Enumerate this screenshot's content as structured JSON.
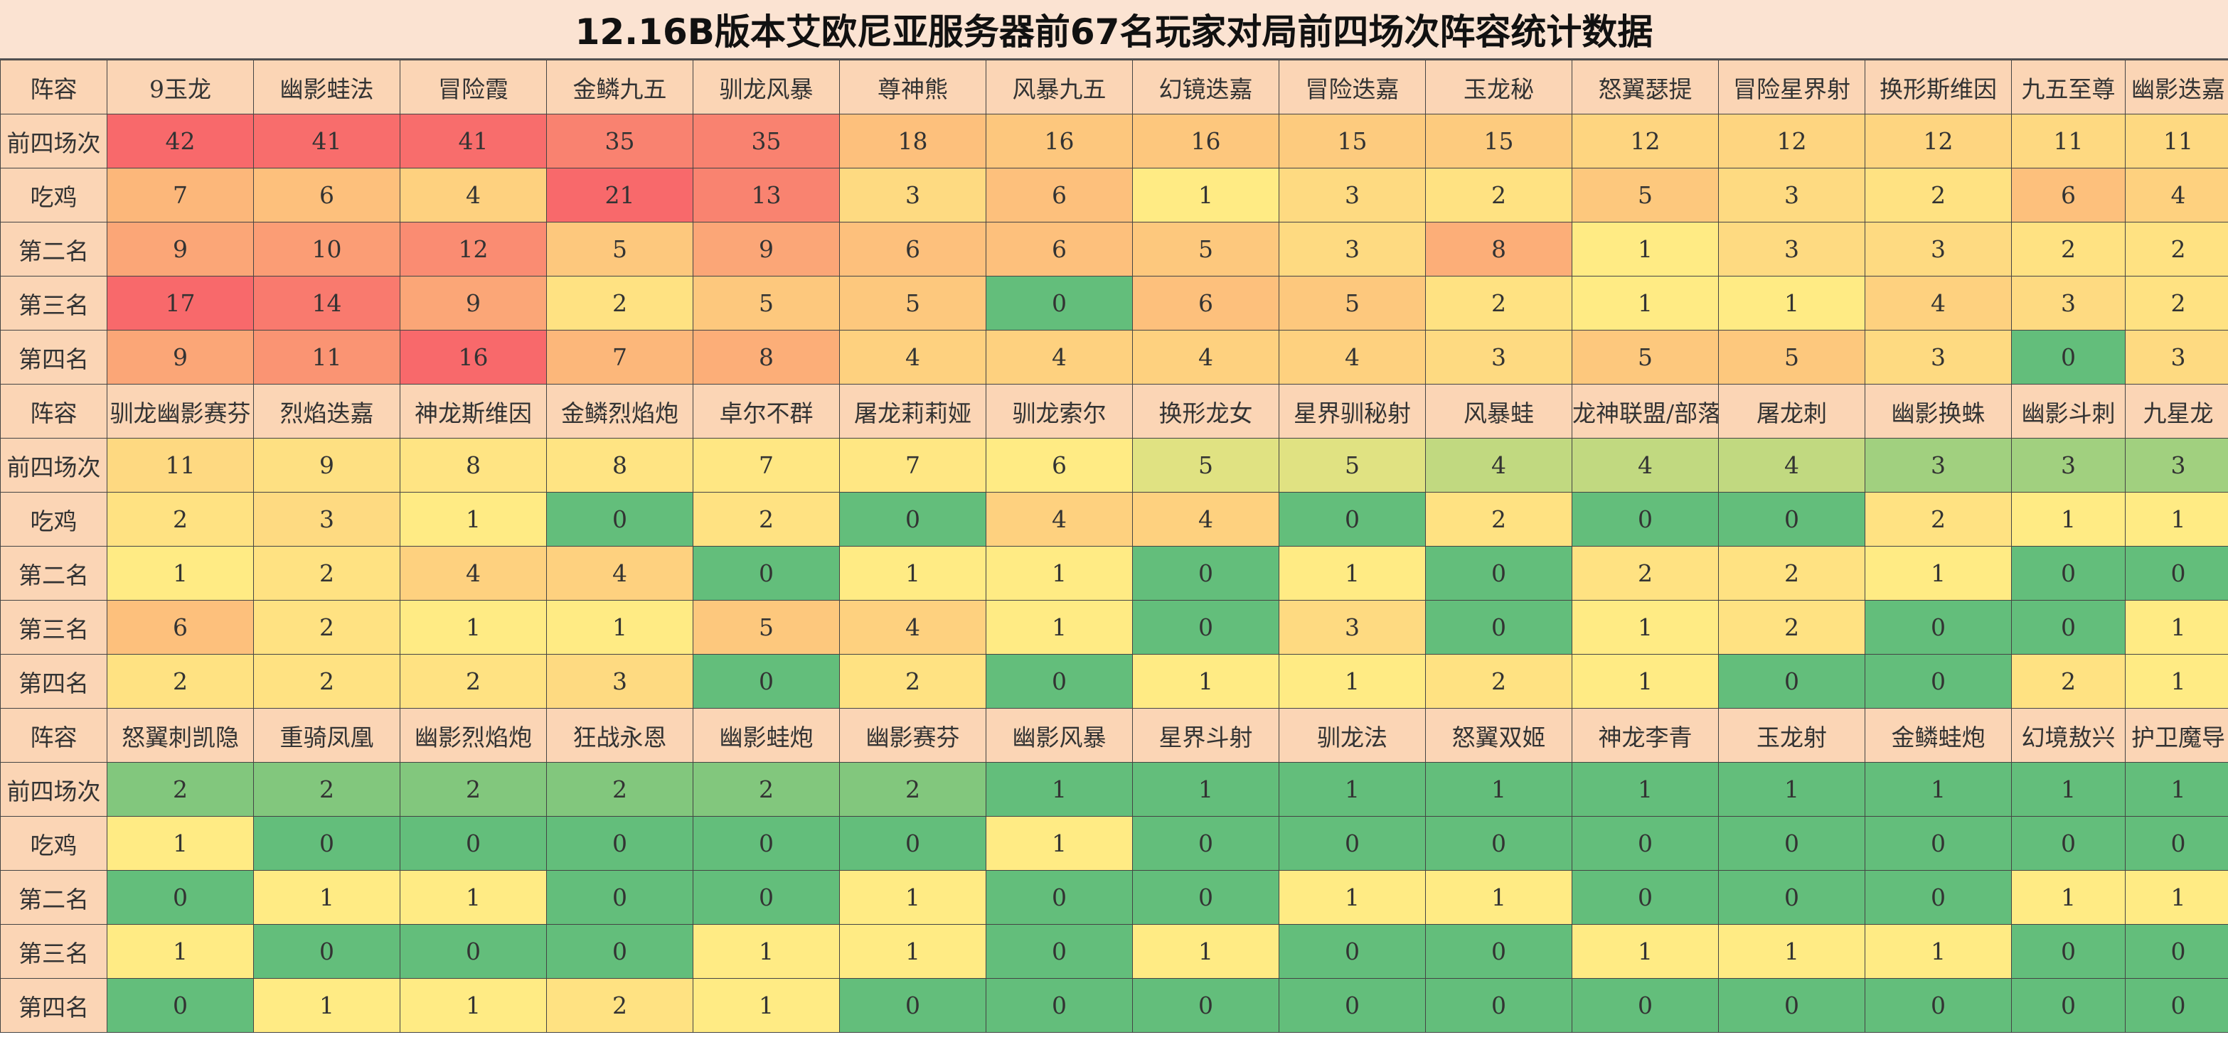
{
  "chart_data": {
    "type": "table",
    "title": "12.16B版本艾欧尼亚服务器前67名玩家对局前四场次阵容统计数据",
    "corner_label": "阵容",
    "row_labels": [
      "前四场次",
      "吃鸡",
      "第二名",
      "第三名",
      "第四名"
    ],
    "blocks": [
      {
        "columns": [
          "9玉龙",
          "幽影蛙法",
          "冒险霞",
          "金鳞九五",
          "驯龙风暴",
          "尊神熊",
          "风暴九五",
          "幻镜迭嘉",
          "冒险迭嘉",
          "玉龙秘",
          "怒翼瑟提",
          "冒险星界射",
          "换形斯维因",
          "九五至尊",
          "幽影迭嘉"
        ],
        "rows": [
          [
            42,
            41,
            41,
            35,
            35,
            18,
            16,
            16,
            15,
            15,
            12,
            12,
            12,
            11,
            11
          ],
          [
            7,
            6,
            4,
            21,
            13,
            3,
            6,
            1,
            3,
            2,
            5,
            3,
            2,
            6,
            4
          ],
          [
            9,
            10,
            12,
            5,
            9,
            6,
            6,
            5,
            3,
            8,
            1,
            3,
            3,
            2,
            2
          ],
          [
            17,
            14,
            9,
            2,
            5,
            5,
            0,
            6,
            5,
            2,
            1,
            1,
            4,
            3,
            2
          ],
          [
            9,
            11,
            16,
            7,
            8,
            4,
            4,
            4,
            4,
            3,
            5,
            5,
            3,
            0,
            3
          ]
        ]
      },
      {
        "columns": [
          "驯龙幽影赛芬",
          "烈焰迭嘉",
          "神龙斯维因",
          "金鳞烈焰炮",
          "卓尔不群",
          "屠龙莉莉娅",
          "驯龙索尔",
          "换形龙女",
          "星界驯秘射",
          "风暴蛙",
          "龙神联盟/部落",
          "屠龙刺",
          "幽影换蛛",
          "幽影斗刺",
          "九星龙"
        ],
        "rows": [
          [
            11,
            9,
            8,
            8,
            7,
            7,
            6,
            5,
            5,
            4,
            4,
            4,
            3,
            3,
            3
          ],
          [
            2,
            3,
            1,
            0,
            2,
            0,
            4,
            4,
            0,
            2,
            0,
            0,
            2,
            1,
            1
          ],
          [
            1,
            2,
            4,
            4,
            0,
            1,
            1,
            0,
            1,
            0,
            2,
            2,
            1,
            0,
            0
          ],
          [
            6,
            2,
            1,
            1,
            5,
            4,
            1,
            0,
            3,
            0,
            1,
            2,
            0,
            0,
            1
          ],
          [
            2,
            2,
            2,
            3,
            0,
            2,
            0,
            1,
            1,
            2,
            1,
            0,
            0,
            2,
            1
          ]
        ]
      },
      {
        "columns": [
          "怒翼刺凯隐",
          "重骑凤凰",
          "幽影烈焰炮",
          "狂战永恩",
          "幽影蛙炮",
          "幽影赛芬",
          "幽影风暴",
          "星界斗射",
          "驯龙法",
          "怒翼双姬",
          "神龙李青",
          "玉龙射",
          "金鳞蛙炮",
          "幻境敖兴",
          "护卫魔导"
        ],
        "rows": [
          [
            2,
            2,
            2,
            2,
            2,
            2,
            1,
            1,
            1,
            1,
            1,
            1,
            1,
            1,
            1
          ],
          [
            1,
            0,
            0,
            0,
            0,
            0,
            1,
            0,
            0,
            0,
            0,
            0,
            0,
            0,
            0
          ],
          [
            0,
            1,
            1,
            0,
            0,
            1,
            0,
            0,
            1,
            1,
            0,
            0,
            0,
            1,
            1
          ],
          [
            1,
            0,
            0,
            0,
            1,
            1,
            0,
            1,
            0,
            0,
            1,
            1,
            1,
            0,
            0
          ],
          [
            0,
            1,
            1,
            2,
            1,
            0,
            0,
            0,
            0,
            0,
            0,
            0,
            0,
            0,
            0
          ]
        ]
      }
    ]
  }
}
